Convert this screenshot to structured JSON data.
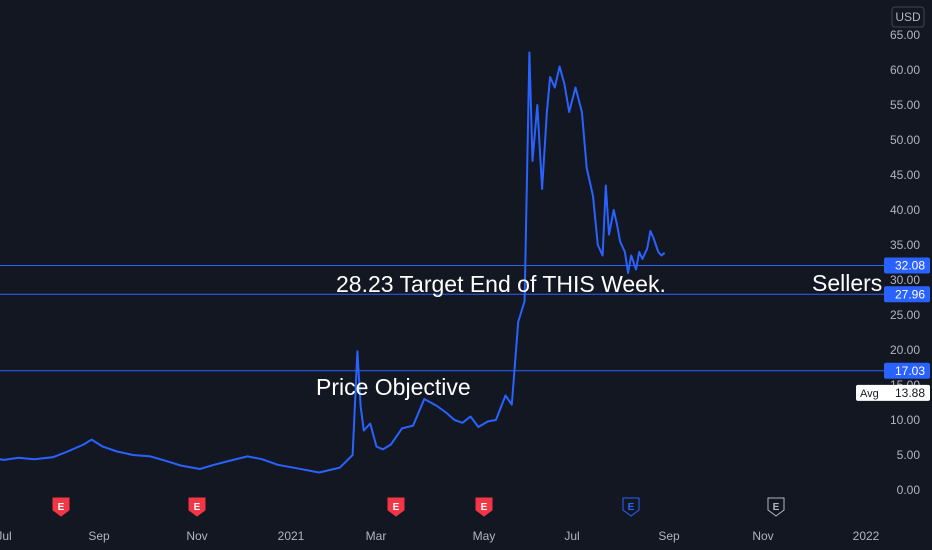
{
  "chart_data": {
    "type": "line",
    "currency": "USD",
    "ylim": [
      0,
      65
    ],
    "yticks": [
      "65.00",
      "60.00",
      "55.00",
      "50.00",
      "45.00",
      "40.00",
      "35.00",
      "30.00",
      "25.00",
      "20.00",
      "15.00",
      "10.00",
      "5.00",
      "0.00"
    ],
    "xticks": [
      "Jul",
      "Sep",
      "Nov",
      "2021",
      "Mar",
      "May",
      "Jul",
      "Sep",
      "Nov",
      "2022"
    ],
    "series": [
      {
        "color": "#2962ff",
        "x": [
          "2020-06-25",
          "2020-07-01",
          "2020-07-10",
          "2020-07-20",
          "2020-08-01",
          "2020-08-10",
          "2020-08-20",
          "2020-08-25",
          "2020-09-01",
          "2020-09-10",
          "2020-09-20",
          "2020-10-01",
          "2020-10-10",
          "2020-10-20",
          "2020-11-01",
          "2020-11-10",
          "2020-11-20",
          "2020-12-01",
          "2020-12-10",
          "2020-12-20",
          "2021-01-01",
          "2021-01-15",
          "2021-01-28",
          "2021-02-05",
          "2021-02-08",
          "2021-02-10",
          "2021-02-12",
          "2021-02-16",
          "2021-02-20",
          "2021-02-24",
          "2021-03-01",
          "2021-03-08",
          "2021-03-15",
          "2021-03-22",
          "2021-03-30",
          "2021-04-05",
          "2021-04-10",
          "2021-04-15",
          "2021-04-20",
          "2021-04-25",
          "2021-05-01",
          "2021-05-06",
          "2021-05-12",
          "2021-05-16",
          "2021-05-20",
          "2021-05-24",
          "2021-05-27",
          "2021-05-29",
          "2021-06-01",
          "2021-06-04",
          "2021-06-07",
          "2021-06-09",
          "2021-06-12",
          "2021-06-15",
          "2021-06-18",
          "2021-06-21",
          "2021-06-25",
          "2021-06-29",
          "2021-07-02",
          "2021-07-06",
          "2021-07-09",
          "2021-07-12",
          "2021-07-14",
          "2021-07-16",
          "2021-07-19",
          "2021-07-21",
          "2021-07-23",
          "2021-07-26",
          "2021-07-28",
          "2021-07-30",
          "2021-08-02",
          "2021-08-04",
          "2021-08-06",
          "2021-08-09",
          "2021-08-11",
          "2021-08-13",
          "2021-08-16",
          "2021-08-18",
          "2021-08-20"
        ],
        "values": [
          4.5,
          4.3,
          4.6,
          4.4,
          4.7,
          5.5,
          6.5,
          7.2,
          6.2,
          5.5,
          5.0,
          4.8,
          4.2,
          3.5,
          3.0,
          3.6,
          4.2,
          4.8,
          4.4,
          3.6,
          3.1,
          2.5,
          3.2,
          5.0,
          19.8,
          12.0,
          8.5,
          9.5,
          6.2,
          5.8,
          6.5,
          8.8,
          9.2,
          13.0,
          12.0,
          11.0,
          10.0,
          9.6,
          10.5,
          9.0,
          9.8,
          10.0,
          13.5,
          12.2,
          24.0,
          27.0,
          62.5,
          47.0,
          55.0,
          43.0,
          54.0,
          59.0,
          57.5,
          60.5,
          58.0,
          54.0,
          57.5,
          54.0,
          46.0,
          42.0,
          35.0,
          33.5,
          43.5,
          36.5,
          40.0,
          38.0,
          35.5,
          34.0,
          31.0,
          33.5,
          31.5,
          34.0,
          33.0,
          34.5,
          37.0,
          36.0,
          34.0,
          33.5,
          33.88
        ]
      }
    ],
    "hlines": [
      {
        "value": 32.08,
        "label": "32.08"
      },
      {
        "value": 27.96,
        "label": "27.96"
      },
      {
        "value": 17.03,
        "label": "17.03"
      }
    ],
    "avg": {
      "label": "Avg",
      "value": "13.88"
    },
    "annotations": [
      {
        "text": "28.23 Target End of THIS Week."
      },
      {
        "text": "Sellers"
      },
      {
        "text": "Price Objective"
      }
    ],
    "earnings_markers": [
      {
        "label": "E",
        "date": "2020-08-08",
        "past": true
      },
      {
        "label": "E",
        "date": "2020-11-01",
        "past": true
      },
      {
        "label": "E",
        "date": "2021-03-06",
        "past": true
      },
      {
        "label": "E",
        "date": "2021-05-05",
        "past": true
      },
      {
        "label": "E",
        "date": "2021-08-07",
        "past": false
      },
      {
        "label": "E",
        "date": "2021-11-06",
        "past": false
      }
    ],
    "colors": {
      "background": "#131722",
      "line": "#2962ff",
      "earnings_past": "#f23645",
      "earnings_next": "#2962ff",
      "earnings_future": "#b2b5be"
    }
  }
}
